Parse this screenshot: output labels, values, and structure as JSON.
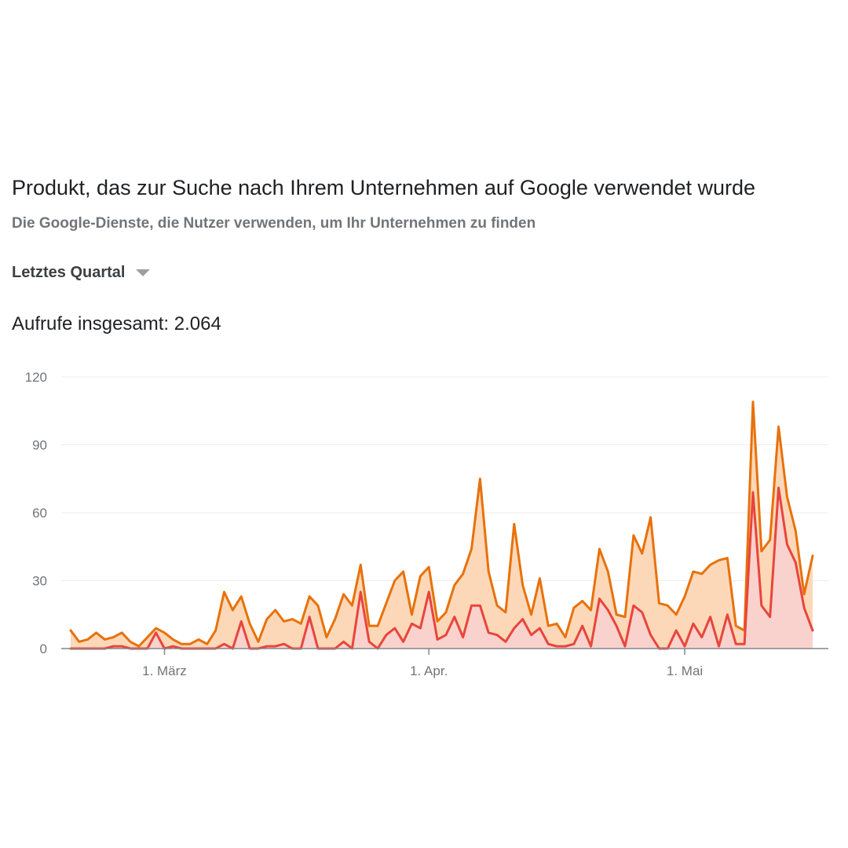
{
  "header": {
    "title": "Produkt, das zur Suche nach Ihrem Unternehmen auf Google verwendet wurde",
    "subtitle": "Die Google-Dienste, die Nutzer verwenden, um Ihr Unternehmen zu finden"
  },
  "filter": {
    "selected": "Letztes Quartal"
  },
  "summary": {
    "label": "Aufrufe insgesamt:",
    "value": "2.064"
  },
  "chart_data": {
    "type": "area",
    "title": "",
    "xlabel": "",
    "ylabel": "",
    "ylim": [
      0,
      120
    ],
    "yticks": [
      0,
      30,
      60,
      90,
      120
    ],
    "grid": true,
    "legend": "none",
    "x_tick_labels": [
      {
        "day_index": 11,
        "label": "1. März"
      },
      {
        "day_index": 42,
        "label": "1. Apr."
      },
      {
        "day_index": 72,
        "label": "1. Mai"
      }
    ],
    "x": [
      0,
      1,
      2,
      3,
      4,
      5,
      6,
      7,
      8,
      9,
      10,
      11,
      12,
      13,
      14,
      15,
      16,
      17,
      18,
      19,
      20,
      21,
      22,
      23,
      24,
      25,
      26,
      27,
      28,
      29,
      30,
      31,
      32,
      33,
      34,
      35,
      36,
      37,
      38,
      39,
      40,
      41,
      42,
      43,
      44,
      45,
      46,
      47,
      48,
      49,
      50,
      51,
      52,
      53,
      54,
      55,
      56,
      57,
      58,
      59,
      60,
      61,
      62,
      63,
      64,
      65,
      66,
      67,
      68,
      69,
      70,
      71,
      72,
      73,
      74,
      75,
      76,
      77,
      78,
      79,
      80,
      81,
      82,
      83,
      84,
      85,
      86,
      87
    ],
    "series": [
      {
        "color": "#e8710a",
        "fill": "#fcd8b8",
        "values": [
          8,
          3,
          4,
          7,
          4,
          5,
          7,
          3,
          1,
          5,
          9,
          7,
          4,
          2,
          2,
          4,
          2,
          8,
          25,
          17,
          23,
          11,
          3,
          13,
          17,
          12,
          13,
          11,
          23,
          19,
          5,
          13,
          24,
          19,
          37,
          10,
          10,
          20,
          30,
          34,
          15,
          32,
          36,
          12,
          16,
          28,
          33,
          44,
          75,
          34,
          19,
          16,
          55,
          28,
          15,
          31,
          10,
          11,
          5,
          18,
          21,
          17,
          44,
          34,
          15,
          14,
          50,
          42,
          58,
          20,
          19,
          15,
          23,
          34,
          33,
          37,
          39,
          40,
          10,
          8,
          109,
          43,
          48,
          98,
          67,
          52,
          24,
          41
        ]
      },
      {
        "color": "#e8453c",
        "fill": "#fad2cf",
        "values": [
          0,
          0,
          0,
          0,
          0,
          1,
          1,
          0,
          0,
          0,
          7,
          0,
          1,
          0,
          0,
          0,
          0,
          0,
          2,
          0,
          12,
          0,
          0,
          1,
          1,
          2,
          0,
          0,
          14,
          0,
          0,
          0,
          3,
          0,
          25,
          3,
          0,
          6,
          9,
          3,
          11,
          9,
          25,
          4,
          6,
          14,
          5,
          19,
          19,
          7,
          6,
          3,
          9,
          13,
          6,
          9,
          2,
          1,
          1,
          2,
          10,
          1,
          22,
          17,
          10,
          1,
          19,
          16,
          6,
          0,
          0,
          8,
          1,
          11,
          5,
          14,
          1,
          15,
          2,
          2,
          69,
          19,
          14,
          71,
          46,
          38,
          18,
          8
        ]
      }
    ]
  }
}
